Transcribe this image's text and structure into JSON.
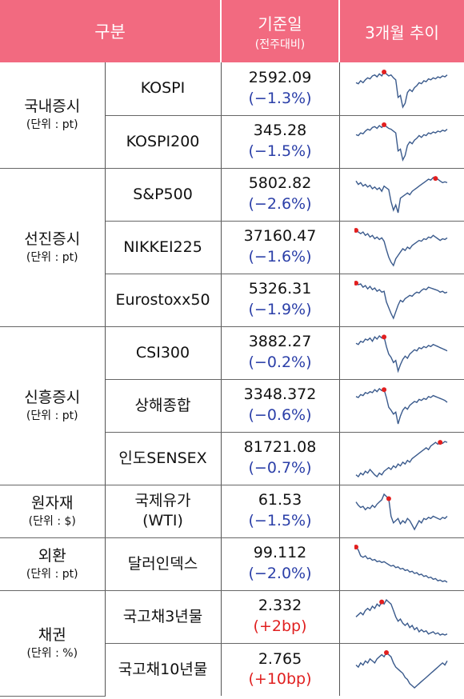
{
  "header": {
    "category": "구분",
    "base_date": "기준일",
    "base_sub": "(전주대비)",
    "trend": "3개월 추이"
  },
  "groups": [
    {
      "label": "국내증시",
      "unit": "(단위 : pt)",
      "rows": [
        {
          "name": "KOSPI",
          "value": "2592.09",
          "change": "(−1.3%)",
          "dir": "neg"
        },
        {
          "name": "KOSPI200",
          "value": "345.28",
          "change": "(−1.5%)",
          "dir": "neg"
        }
      ]
    },
    {
      "label": "선진증시",
      "unit": "(단위 : pt)",
      "rows": [
        {
          "name": "S&P500",
          "value": "5802.82",
          "change": "(−2.6%)",
          "dir": "neg"
        },
        {
          "name": "NIKKEI225",
          "value": "37160.47",
          "change": "(−1.6%)",
          "dir": "neg"
        },
        {
          "name": "Eurostoxx50",
          "value": "5326.31",
          "change": "(−1.9%)",
          "dir": "neg"
        }
      ]
    },
    {
      "label": "신흥증시",
      "unit": "(단위 : pt)",
      "rows": [
        {
          "name": "CSI300",
          "value": "3882.27",
          "change": "(−0.2%)",
          "dir": "neg"
        },
        {
          "name": "상해종합",
          "value": "3348.372",
          "change": "(−0.6%)",
          "dir": "neg"
        },
        {
          "name": "인도SENSEX",
          "value": "81721.08",
          "change": "(−0.7%)",
          "dir": "neg"
        }
      ]
    },
    {
      "label": "원자재",
      "unit": "(단위 : $)",
      "rows": [
        {
          "name": "국제유가\n(WTI)",
          "value": "61.53",
          "change": "(−1.5%)",
          "dir": "neg"
        }
      ]
    },
    {
      "label": "외환",
      "unit": "(단위 : pt)",
      "rows": [
        {
          "name": "달러인덱스",
          "value": "99.112",
          "change": "(−2.0%)",
          "dir": "neg"
        }
      ]
    },
    {
      "label": "채권",
      "unit": "(단위 : %)",
      "rows": [
        {
          "name": "국고채3년물",
          "value": "2.332",
          "change": "(+2bp)",
          "dir": "pos"
        },
        {
          "name": "국고채10년물",
          "value": "2.765",
          "change": "(+10bp)",
          "dir": "pos"
        }
      ]
    }
  ],
  "colors": {
    "header": "#f26a80",
    "line": "#3a5a8c",
    "peak": "#e21f1f",
    "negative": "#2b3fa8",
    "positive": "#e02020"
  },
  "sparklines": [
    {
      "series": [
        55,
        54,
        57,
        55,
        58,
        60,
        59,
        62,
        63,
        61,
        64,
        62,
        66,
        64,
        62,
        63,
        60,
        58,
        40,
        42,
        30,
        34,
        45,
        48,
        46,
        50,
        52,
        55,
        54,
        57,
        56,
        59,
        58,
        60,
        59,
        61,
        60,
        62,
        61,
        63
      ],
      "peak": 12
    },
    {
      "series": [
        56,
        55,
        58,
        57,
        60,
        62,
        61,
        64,
        65,
        63,
        66,
        64,
        67,
        65,
        63,
        62,
        60,
        58,
        38,
        40,
        28,
        33,
        44,
        48,
        46,
        50,
        52,
        55,
        53,
        56,
        55,
        58,
        57,
        59,
        58,
        60,
        59,
        61,
        60,
        62
      ],
      "peak": 12
    },
    {
      "series": [
        62,
        58,
        60,
        56,
        58,
        55,
        57,
        53,
        55,
        52,
        54,
        50,
        56,
        54,
        52,
        38,
        28,
        34,
        25,
        42,
        44,
        46,
        48,
        46,
        50,
        52,
        54,
        56,
        58,
        60,
        62,
        64,
        63,
        66,
        65,
        64,
        62,
        60,
        61,
        60
      ],
      "peak": 34
    },
    {
      "series": [
        68,
        66,
        64,
        66,
        62,
        64,
        60,
        62,
        58,
        60,
        57,
        59,
        55,
        45,
        36,
        30,
        26,
        34,
        38,
        42,
        46,
        44,
        48,
        46,
        50,
        52,
        54,
        56,
        55,
        58,
        57,
        60,
        59,
        62,
        60,
        58,
        56,
        58,
        57,
        59
      ],
      "peak": 0
    },
    {
      "series": [
        65,
        63,
        64,
        60,
        62,
        58,
        61,
        57,
        59,
        55,
        57,
        54,
        55,
        42,
        35,
        28,
        22,
        30,
        38,
        44,
        42,
        46,
        48,
        50,
        49,
        52,
        54,
        53,
        56,
        58,
        57,
        60,
        59,
        58,
        57,
        56,
        54,
        55,
        53,
        54
      ],
      "peak": 0
    },
    {
      "series": [
        58,
        57,
        60,
        59,
        62,
        61,
        63,
        60,
        64,
        62,
        65,
        63,
        64,
        55,
        48,
        45,
        40,
        42,
        32,
        38,
        43,
        46,
        44,
        48,
        50,
        52,
        51,
        54,
        53,
        55,
        54,
        56,
        55,
        57,
        56,
        55,
        54,
        53,
        52,
        51
      ],
      "peak": 12
    },
    {
      "series": [
        56,
        55,
        58,
        57,
        60,
        59,
        61,
        60,
        63,
        61,
        64,
        62,
        63,
        55,
        45,
        42,
        38,
        40,
        28,
        36,
        42,
        45,
        43,
        47,
        49,
        51,
        50,
        53,
        52,
        54,
        53,
        56,
        55,
        57,
        56,
        55,
        54,
        53,
        52,
        50
      ],
      "peak": 12
    },
    {
      "series": [
        30,
        28,
        32,
        30,
        34,
        32,
        36,
        33,
        30,
        28,
        32,
        30,
        34,
        36,
        38,
        36,
        40,
        38,
        42,
        40,
        44,
        42,
        46,
        44,
        48,
        50,
        52,
        54,
        56,
        58,
        60,
        58,
        62,
        64,
        66,
        64,
        66,
        65,
        67,
        66
      ],
      "peak": 36
    },
    {
      "series": [
        55,
        52,
        50,
        51,
        48,
        50,
        49,
        52,
        50,
        53,
        55,
        57,
        62,
        60,
        58,
        42,
        36,
        38,
        40,
        35,
        38,
        36,
        40,
        38,
        34,
        30,
        34,
        38,
        36,
        40,
        39,
        41,
        40,
        42,
        41,
        40,
        39,
        41,
        40,
        42
      ],
      "peak": 14
    },
    {
      "series": [
        66,
        62,
        54,
        52,
        54,
        50,
        51,
        48,
        49,
        46,
        47,
        45,
        46,
        44,
        42,
        40,
        41,
        38,
        39,
        36,
        37,
        34,
        35,
        32,
        33,
        30,
        31,
        28,
        29,
        26,
        27,
        24,
        25,
        22,
        23,
        20,
        21,
        19,
        20,
        18
      ],
      "peak": 0
    },
    {
      "series": [
        44,
        46,
        48,
        46,
        50,
        52,
        50,
        54,
        52,
        56,
        54,
        58,
        56,
        60,
        58,
        56,
        50,
        44,
        40,
        42,
        38,
        36,
        38,
        34,
        36,
        32,
        34,
        30,
        32,
        30,
        31,
        28,
        29,
        30,
        28,
        29,
        27,
        28,
        27,
        28
      ],
      "peak": 11
    },
    {
      "series": [
        48,
        46,
        50,
        48,
        52,
        50,
        54,
        52,
        50,
        54,
        56,
        58,
        56,
        60,
        58,
        56,
        50,
        46,
        44,
        42,
        40,
        36,
        34,
        30,
        28,
        26,
        28,
        30,
        32,
        34,
        36,
        38,
        40,
        42,
        44,
        46,
        48,
        50,
        48,
        52
      ],
      "peak": 13
    }
  ]
}
